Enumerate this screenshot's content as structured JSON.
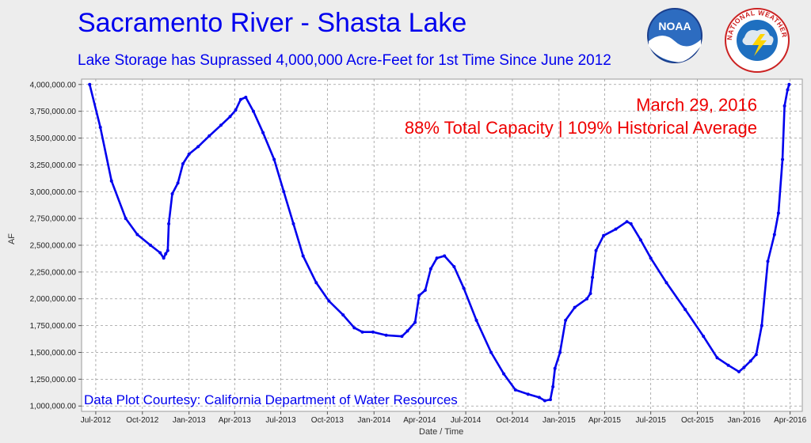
{
  "header": {
    "title": "Sacramento River - Shasta Lake",
    "subtitle": "Lake Storage has Suprassed 4,000,000 Acre-Feet for 1st Time Since June 2012"
  },
  "logos": {
    "noaa": "NOAA",
    "nws": "NATIONAL WEATHER SERVICE"
  },
  "annotations": {
    "date": "March 29, 2016",
    "capacity": "88% Total Capacity | 109% Historical Average"
  },
  "courtesy": "Data Plot Courtesy: California Department of Water Resources",
  "colors": {
    "series": "#0000ee",
    "annotation": "#ee0000",
    "background": "#ededed",
    "plot_background": "#ffffff"
  },
  "chart_data": {
    "type": "line",
    "title": "",
    "xlabel": "Date / Time",
    "ylabel": "AF",
    "ylim": [
      950000,
      4050000
    ],
    "xlim": [
      "2012-06-03",
      "2016-04-25"
    ],
    "grid": true,
    "y_ticks": [
      1000000,
      1250000,
      1500000,
      1750000,
      2000000,
      2250000,
      2500000,
      2750000,
      3000000,
      3250000,
      3500000,
      3750000,
      4000000
    ],
    "y_tick_labels": [
      "1,000,000.00",
      "1,250,000.00",
      "1,500,000.00",
      "1,750,000.00",
      "2,000,000.00",
      "2,250,000.00",
      "2,500,000.00",
      "2,750,000.00",
      "3,000,000.00",
      "3,250,000.00",
      "3,500,000.00",
      "3,750,000.00",
      "4,000,000.00"
    ],
    "x_ticks": [
      "2012-07-01",
      "2012-10-01",
      "2013-01-01",
      "2013-04-01",
      "2013-07-01",
      "2013-10-01",
      "2014-01-01",
      "2014-04-01",
      "2014-07-01",
      "2014-10-01",
      "2015-01-01",
      "2015-04-01",
      "2015-07-01",
      "2015-10-01",
      "2016-01-01",
      "2016-04-01"
    ],
    "x_tick_labels": [
      "Jul-2012",
      "Oct-2012",
      "Jan-2013",
      "Apr-2013",
      "Jul-2013",
      "Oct-2013",
      "Jan-2014",
      "Apr-2014",
      "Jul-2014",
      "Oct-2014",
      "Jan-2015",
      "Apr-2015",
      "Jul-2015",
      "Oct-2015",
      "Jan-2016",
      "Apr-2016"
    ],
    "series": [
      {
        "name": "",
        "points": [
          [
            "2012-06-19",
            4000000
          ],
          [
            "2012-07-10",
            3600000
          ],
          [
            "2012-08-01",
            3100000
          ],
          [
            "2012-08-29",
            2750000
          ],
          [
            "2012-09-21",
            2600000
          ],
          [
            "2012-10-17",
            2500000
          ],
          [
            "2012-11-05",
            2430000
          ],
          [
            "2012-11-12",
            2380000
          ],
          [
            "2012-11-16",
            2420000
          ],
          [
            "2012-11-20",
            2450000
          ],
          [
            "2012-11-22",
            2700000
          ],
          [
            "2012-11-29",
            2980000
          ],
          [
            "2012-12-10",
            3080000
          ],
          [
            "2012-12-20",
            3260000
          ],
          [
            "2013-01-01",
            3350000
          ],
          [
            "2013-01-19",
            3420000
          ],
          [
            "2013-02-10",
            3520000
          ],
          [
            "2013-03-05",
            3620000
          ],
          [
            "2013-03-23",
            3700000
          ],
          [
            "2013-04-03",
            3760000
          ],
          [
            "2013-04-13",
            3860000
          ],
          [
            "2013-04-23",
            3880000
          ],
          [
            "2013-05-08",
            3750000
          ],
          [
            "2013-05-27",
            3550000
          ],
          [
            "2013-06-18",
            3300000
          ],
          [
            "2013-07-07",
            3000000
          ],
          [
            "2013-07-26",
            2700000
          ],
          [
            "2013-08-14",
            2400000
          ],
          [
            "2013-09-09",
            2150000
          ],
          [
            "2013-10-04",
            1980000
          ],
          [
            "2013-11-01",
            1850000
          ],
          [
            "2013-11-23",
            1730000
          ],
          [
            "2013-12-09",
            1690000
          ],
          [
            "2013-12-30",
            1690000
          ],
          [
            "2014-01-25",
            1660000
          ],
          [
            "2014-02-25",
            1650000
          ],
          [
            "2014-03-08",
            1700000
          ],
          [
            "2014-03-23",
            1780000
          ],
          [
            "2014-03-31",
            2030000
          ],
          [
            "2014-04-12",
            2080000
          ],
          [
            "2014-04-23",
            2280000
          ],
          [
            "2014-05-05",
            2380000
          ],
          [
            "2014-05-20",
            2400000
          ],
          [
            "2014-06-08",
            2300000
          ],
          [
            "2014-06-27",
            2100000
          ],
          [
            "2014-07-22",
            1800000
          ],
          [
            "2014-08-20",
            1500000
          ],
          [
            "2014-09-14",
            1300000
          ],
          [
            "2014-10-07",
            1150000
          ],
          [
            "2014-11-01",
            1110000
          ],
          [
            "2014-11-23",
            1080000
          ],
          [
            "2014-12-04",
            1050000
          ],
          [
            "2014-12-15",
            1060000
          ],
          [
            "2014-12-20",
            1180000
          ],
          [
            "2014-12-24",
            1350000
          ],
          [
            "2015-01-03",
            1500000
          ],
          [
            "2015-01-14",
            1800000
          ],
          [
            "2015-02-01",
            1920000
          ],
          [
            "2015-02-25",
            2000000
          ],
          [
            "2015-03-04",
            2050000
          ],
          [
            "2015-03-08",
            2200000
          ],
          [
            "2015-03-15",
            2450000
          ],
          [
            "2015-03-30",
            2590000
          ],
          [
            "2015-04-23",
            2650000
          ],
          [
            "2015-05-15",
            2720000
          ],
          [
            "2015-05-23",
            2700000
          ],
          [
            "2015-06-11",
            2550000
          ],
          [
            "2015-07-01",
            2380000
          ],
          [
            "2015-08-01",
            2150000
          ],
          [
            "2015-09-07",
            1900000
          ],
          [
            "2015-10-13",
            1650000
          ],
          [
            "2015-11-09",
            1450000
          ],
          [
            "2015-12-01",
            1380000
          ],
          [
            "2015-12-22",
            1320000
          ],
          [
            "2016-01-01",
            1360000
          ],
          [
            "2016-01-14",
            1420000
          ],
          [
            "2016-01-25",
            1480000
          ],
          [
            "2016-02-05",
            1750000
          ],
          [
            "2016-02-17",
            2350000
          ],
          [
            "2016-03-01",
            2600000
          ],
          [
            "2016-03-09",
            2800000
          ],
          [
            "2016-03-17",
            3300000
          ],
          [
            "2016-03-21",
            3800000
          ],
          [
            "2016-03-27",
            3950000
          ],
          [
            "2016-03-30",
            4000000
          ]
        ]
      }
    ]
  }
}
